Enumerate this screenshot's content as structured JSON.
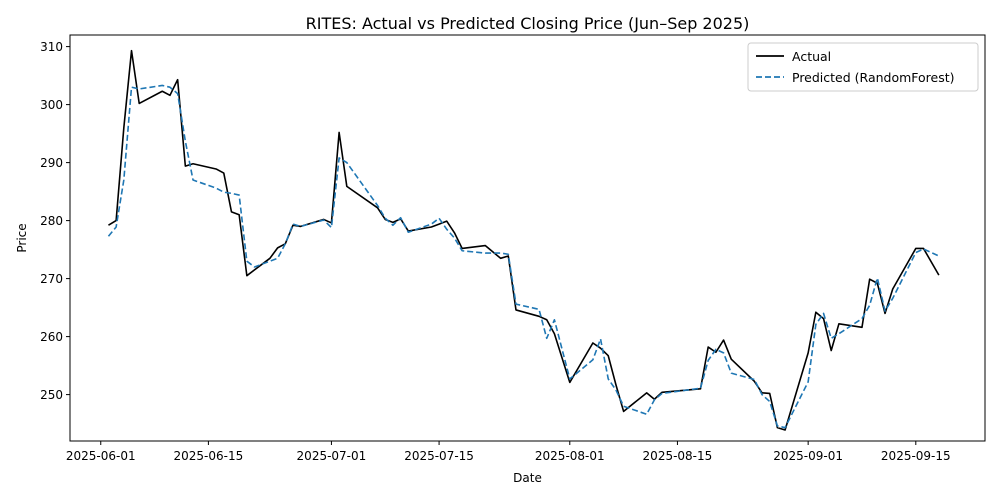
{
  "chart_data": {
    "type": "line",
    "title": "RITES: Actual vs Predicted Closing Price (Jun–Sep 2025)",
    "xlabel": "Date",
    "ylabel": "Price",
    "xlim": [
      "2025-05-28",
      "2025-09-24"
    ],
    "ylim": [
      242,
      312
    ],
    "x_ticks": [
      "2025-06-01",
      "2025-06-15",
      "2025-07-01",
      "2025-07-15",
      "2025-08-01",
      "2025-08-15",
      "2025-09-01",
      "2025-09-15"
    ],
    "y_ticks": [
      250,
      260,
      270,
      280,
      290,
      300,
      310
    ],
    "grid": false,
    "legend_position": "top-right",
    "series": [
      {
        "name": "Actual",
        "color": "#000000",
        "style": "solid",
        "points": [
          [
            "2025-06-02",
            279.2
          ],
          [
            "2025-06-03",
            280.0
          ],
          [
            "2025-06-04",
            296.0
          ],
          [
            "2025-06-05",
            309.3
          ],
          [
            "2025-06-06",
            300.2
          ],
          [
            "2025-06-09",
            302.3
          ],
          [
            "2025-06-10",
            301.6
          ],
          [
            "2025-06-11",
            304.3
          ],
          [
            "2025-06-12",
            289.4
          ],
          [
            "2025-06-13",
            289.8
          ],
          [
            "2025-06-16",
            288.9
          ],
          [
            "2025-06-17",
            288.2
          ],
          [
            "2025-06-18",
            281.5
          ],
          [
            "2025-06-19",
            281.0
          ],
          [
            "2025-06-20",
            270.5
          ],
          [
            "2025-06-23",
            273.5
          ],
          [
            "2025-06-24",
            275.3
          ],
          [
            "2025-06-25",
            276.0
          ],
          [
            "2025-06-26",
            279.2
          ],
          [
            "2025-06-27",
            279.0
          ],
          [
            "2025-06-30",
            280.2
          ],
          [
            "2025-07-01",
            279.6
          ],
          [
            "2025-07-02",
            295.2
          ],
          [
            "2025-07-03",
            285.9
          ],
          [
            "2025-07-07",
            282.2
          ],
          [
            "2025-07-08",
            280.2
          ],
          [
            "2025-07-09",
            279.7
          ],
          [
            "2025-07-10",
            280.3
          ],
          [
            "2025-07-11",
            278.2
          ],
          [
            "2025-07-14",
            278.9
          ],
          [
            "2025-07-15",
            279.4
          ],
          [
            "2025-07-16",
            279.9
          ],
          [
            "2025-07-17",
            277.9
          ],
          [
            "2025-07-18",
            275.2
          ],
          [
            "2025-07-21",
            275.7
          ],
          [
            "2025-07-23",
            273.5
          ],
          [
            "2025-07-24",
            273.9
          ],
          [
            "2025-07-25",
            264.6
          ],
          [
            "2025-07-28",
            263.5
          ],
          [
            "2025-07-29",
            262.9
          ],
          [
            "2025-07-30",
            260.5
          ],
          [
            "2025-08-01",
            252.1
          ],
          [
            "2025-08-04",
            258.9
          ],
          [
            "2025-08-05",
            258.0
          ],
          [
            "2025-08-06",
            256.7
          ],
          [
            "2025-08-07",
            251.7
          ],
          [
            "2025-08-08",
            247.1
          ],
          [
            "2025-08-11",
            250.3
          ],
          [
            "2025-08-12",
            249.2
          ],
          [
            "2025-08-13",
            250.4
          ],
          [
            "2025-08-18",
            251.0
          ],
          [
            "2025-08-19",
            258.2
          ],
          [
            "2025-08-20",
            257.3
          ],
          [
            "2025-08-21",
            259.4
          ],
          [
            "2025-08-22",
            256.1
          ],
          [
            "2025-08-25",
            252.3
          ],
          [
            "2025-08-26",
            250.3
          ],
          [
            "2025-08-27",
            250.2
          ],
          [
            "2025-08-28",
            244.3
          ],
          [
            "2025-08-29",
            243.9
          ],
          [
            "2025-09-01",
            257.2
          ],
          [
            "2025-09-02",
            264.2
          ],
          [
            "2025-09-03",
            263.1
          ],
          [
            "2025-09-04",
            257.6
          ],
          [
            "2025-09-05",
            262.2
          ],
          [
            "2025-09-08",
            261.6
          ],
          [
            "2025-09-09",
            269.9
          ],
          [
            "2025-09-10",
            269.2
          ],
          [
            "2025-09-11",
            264.0
          ],
          [
            "2025-09-12",
            268.2
          ],
          [
            "2025-09-15",
            275.2
          ],
          [
            "2025-09-16",
            275.2
          ],
          [
            "2025-09-18",
            270.6
          ]
        ]
      },
      {
        "name": "Predicted (RandomForest)",
        "color": "#1f77b4",
        "style": "dashed",
        "points": [
          [
            "2025-06-02",
            277.3
          ],
          [
            "2025-06-03",
            278.9
          ],
          [
            "2025-06-04",
            287.0
          ],
          [
            "2025-06-05",
            303.0
          ],
          [
            "2025-06-06",
            302.7
          ],
          [
            "2025-06-09",
            303.3
          ],
          [
            "2025-06-10",
            303.0
          ],
          [
            "2025-06-11",
            301.9
          ],
          [
            "2025-06-12",
            293.7
          ],
          [
            "2025-06-13",
            287.0
          ],
          [
            "2025-06-16",
            285.6
          ],
          [
            "2025-06-17",
            284.9
          ],
          [
            "2025-06-18",
            284.7
          ],
          [
            "2025-06-19",
            284.4
          ],
          [
            "2025-06-20",
            273.0
          ],
          [
            "2025-06-21",
            272.0
          ],
          [
            "2025-06-24",
            273.5
          ],
          [
            "2025-06-25",
            276.0
          ],
          [
            "2025-06-26",
            279.4
          ],
          [
            "2025-06-27",
            279.0
          ],
          [
            "2025-06-30",
            280.1
          ],
          [
            "2025-07-01",
            278.8
          ],
          [
            "2025-07-02",
            290.8
          ],
          [
            "2025-07-03",
            290.0
          ],
          [
            "2025-07-07",
            282.6
          ],
          [
            "2025-07-08",
            280.4
          ],
          [
            "2025-07-09",
            279.2
          ],
          [
            "2025-07-10",
            280.5
          ],
          [
            "2025-07-11",
            278.0
          ],
          [
            "2025-07-14",
            279.4
          ],
          [
            "2025-07-15",
            280.4
          ],
          [
            "2025-07-16",
            278.5
          ],
          [
            "2025-07-17",
            277.0
          ],
          [
            "2025-07-18",
            274.8
          ],
          [
            "2025-07-21",
            274.4
          ],
          [
            "2025-07-23",
            274.4
          ],
          [
            "2025-07-24",
            274.2
          ],
          [
            "2025-07-25",
            265.6
          ],
          [
            "2025-07-28",
            264.7
          ],
          [
            "2025-07-29",
            259.7
          ],
          [
            "2025-07-30",
            262.9
          ],
          [
            "2025-08-01",
            252.7
          ],
          [
            "2025-08-04",
            256.0
          ],
          [
            "2025-08-05",
            259.6
          ],
          [
            "2025-08-06",
            252.7
          ],
          [
            "2025-08-07",
            250.8
          ],
          [
            "2025-08-08",
            248.0
          ],
          [
            "2025-08-11",
            246.6
          ],
          [
            "2025-08-12",
            249.1
          ],
          [
            "2025-08-13",
            250.2
          ],
          [
            "2025-08-18",
            251.1
          ],
          [
            "2025-08-19",
            255.9
          ],
          [
            "2025-08-20",
            257.8
          ],
          [
            "2025-08-21",
            257.2
          ],
          [
            "2025-08-22",
            253.7
          ],
          [
            "2025-08-25",
            252.6
          ],
          [
            "2025-08-26",
            250.0
          ],
          [
            "2025-08-27",
            248.8
          ],
          [
            "2025-08-28",
            244.6
          ],
          [
            "2025-08-29",
            244.3
          ],
          [
            "2025-09-01",
            252.2
          ],
          [
            "2025-09-02",
            262.1
          ],
          [
            "2025-09-03",
            264.0
          ],
          [
            "2025-09-04",
            259.7
          ],
          [
            "2025-09-05",
            260.5
          ],
          [
            "2025-09-08",
            263.1
          ],
          [
            "2025-09-09",
            265.4
          ],
          [
            "2025-09-10",
            270.1
          ],
          [
            "2025-09-11",
            264.4
          ],
          [
            "2025-09-12",
            266.6
          ],
          [
            "2025-09-15",
            274.5
          ],
          [
            "2025-09-16",
            275.1
          ],
          [
            "2025-09-18",
            273.9
          ]
        ]
      }
    ]
  }
}
